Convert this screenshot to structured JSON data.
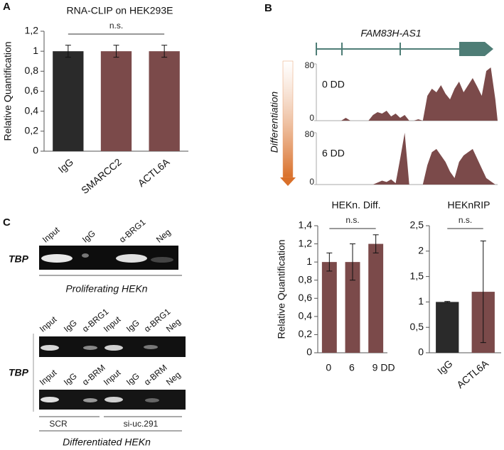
{
  "panel_labels": [
    "A",
    "B",
    "C"
  ],
  "gene": {
    "name": "FAM83H-AS1",
    "axis_label": "Differentiation"
  },
  "gels": {
    "target": "TBP",
    "top": {
      "lanes": [
        "Input",
        "IgG",
        "α-BRG1",
        "Neg"
      ],
      "caption": "Proliferating HEKn"
    },
    "bottom": {
      "lanes_upper": [
        "Input",
        "IgG",
        "α-BRG1",
        "Input",
        "IgG",
        "α-BRG1",
        "Neg"
      ],
      "lanes_lower": [
        "Input",
        "IgG",
        "α-BRM",
        "Input",
        "IgG",
        "α-BRM",
        "Neg"
      ],
      "groups": [
        "SCR",
        "si-uc.291"
      ],
      "caption": "Differentiated HEKn"
    }
  },
  "chart_data": [
    {
      "type": "bar",
      "title": "RNA-CLIP on HEK293E",
      "ylabel": "Relative Quantification",
      "annotation": "n.s.",
      "categories": [
        "IgG",
        "SMARCC2",
        "ACTL6A"
      ],
      "values": [
        1,
        1,
        1
      ],
      "errors": [
        0.06,
        0.06,
        0.06
      ],
      "colors": [
        "#2a2a2a",
        "#7b4a4a",
        "#7b4a4a"
      ],
      "rotate_labels": true,
      "ylim": [
        0,
        1.2
      ],
      "yticks": [
        0,
        {
          "value": 0.2,
          "label": "0,2"
        },
        {
          "value": 0.4,
          "label": "0,4"
        },
        {
          "value": 0.6,
          "label": "0,6"
        },
        {
          "value": 0.8,
          "label": "0,8"
        },
        1,
        {
          "value": 1.2,
          "label": "1,2"
        }
      ]
    },
    {
      "type": "area",
      "label": "0 DD",
      "color": "#7b4a4a",
      "ylim": [
        0,
        80
      ],
      "yticks": [
        0,
        80
      ],
      "values": [
        0,
        0,
        0,
        0,
        0,
        0,
        4,
        0,
        0,
        0,
        0,
        0,
        8,
        12,
        10,
        14,
        6,
        10,
        4,
        8,
        0,
        0,
        2,
        0,
        35,
        45,
        40,
        50,
        38,
        30,
        45,
        55,
        40,
        50,
        60,
        48,
        35,
        70,
        75,
        30
      ]
    },
    {
      "type": "area",
      "label": "6 DD",
      "color": "#7b4a4a",
      "ylim": [
        0,
        80
      ],
      "yticks": [
        0,
        80
      ],
      "values": [
        0,
        0,
        0,
        0,
        0,
        0,
        0,
        0,
        0,
        0,
        0,
        0,
        0,
        3,
        6,
        4,
        8,
        2,
        40,
        80,
        0,
        0,
        0,
        0,
        30,
        50,
        55,
        45,
        35,
        20,
        10,
        35,
        45,
        50,
        55,
        40,
        25,
        10,
        5,
        0
      ]
    },
    {
      "type": "bar",
      "title": "HEKn. Diff.",
      "ylabel": "Relative Quantification",
      "annotation": "n.s.",
      "categories": [
        "0",
        "6",
        "9 DD"
      ],
      "values": [
        1,
        1,
        1.2
      ],
      "errors": [
        0.1,
        0.2,
        0.1
      ],
      "colors": [
        "#7b4a4a",
        "#7b4a4a",
        "#7b4a4a"
      ],
      "rotate_labels": false,
      "ylim": [
        0,
        1.4
      ],
      "yticks": [
        0,
        {
          "value": 0.2,
          "label": "0,2"
        },
        {
          "value": 0.4,
          "label": "0,4"
        },
        {
          "value": 0.6,
          "label": "0,6"
        },
        {
          "value": 0.8,
          "label": "0,8"
        },
        1,
        {
          "value": 1.2,
          "label": "1,2"
        },
        {
          "value": 1.4,
          "label": "1,4"
        }
      ]
    },
    {
      "type": "bar",
      "title": "HEKnRIP",
      "annotation": "n.s.",
      "categories": [
        "IgG",
        "ACTL6A"
      ],
      "values": [
        1,
        1.2
      ],
      "errors": [
        0.01,
        1.0
      ],
      "colors": [
        "#2a2a2a",
        "#7b4a4a"
      ],
      "rotate_labels": true,
      "ylim": [
        0,
        2.5
      ],
      "yticks": [
        0,
        {
          "value": 0.5,
          "label": "0,5"
        },
        1,
        {
          "value": 1.5,
          "label": "1,5"
        },
        2,
        {
          "value": 2.5,
          "label": "2,5"
        }
      ]
    }
  ]
}
